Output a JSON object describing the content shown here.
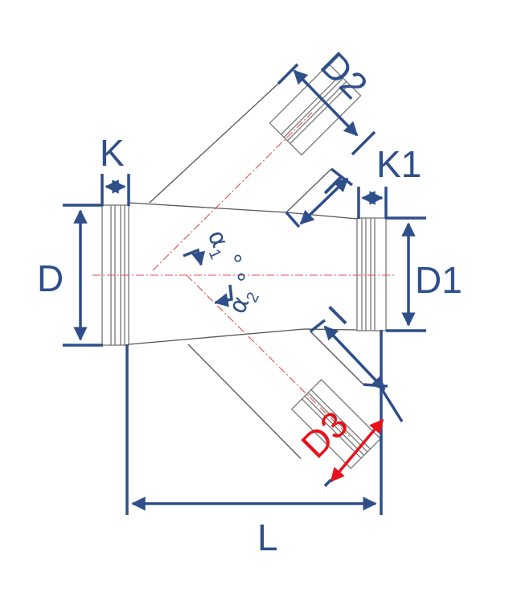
{
  "colors": {
    "dimension": "#2e4f8a",
    "highlight": "#e8111b",
    "outline": "#555555",
    "centerline": "#e05050",
    "pipe_band": "#8a8a8a"
  },
  "labels": {
    "k": "K",
    "k1": "K1",
    "d": "D",
    "d1": "D1",
    "d2": "D2",
    "d3": "D3",
    "l": "L",
    "i_upper": "I",
    "i_lower": "I",
    "alpha1": "α",
    "alpha1_sub": "1",
    "alpha1_deg": "°",
    "alpha2": "α",
    "alpha2_sub": "2",
    "alpha2_deg": "°"
  }
}
